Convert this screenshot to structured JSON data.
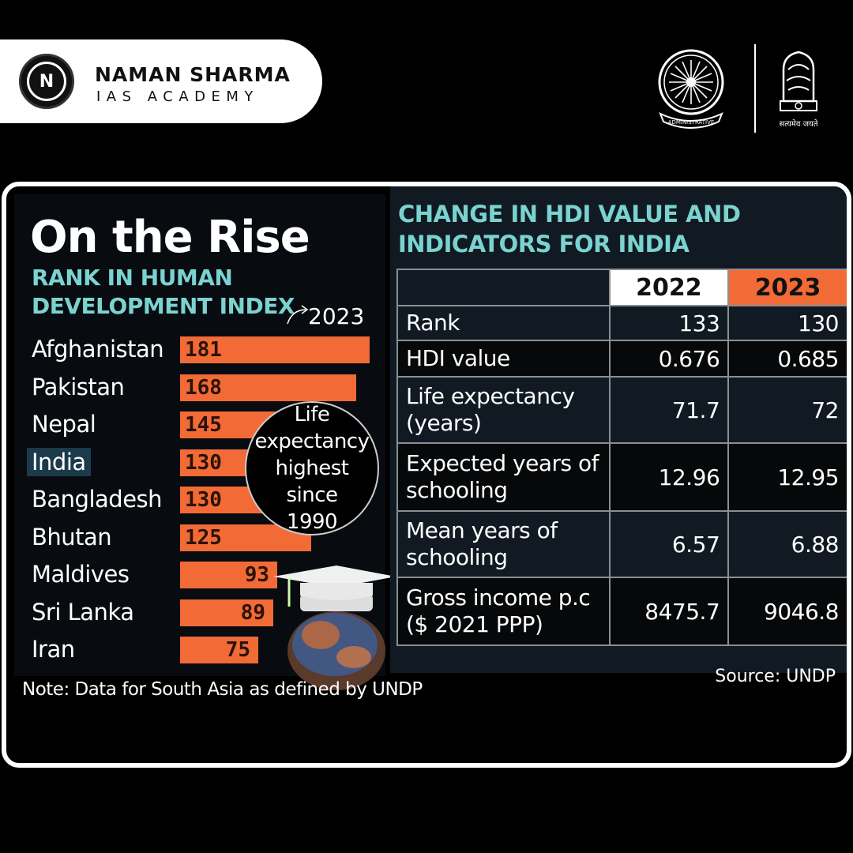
{
  "header": {
    "brand_logo_letter": "N",
    "brand_name": "NAMAN SHARMA",
    "brand_subtitle": "IAS ACADEMY",
    "emblem_motto": "सत्यमेव जयते",
    "wheel_emblem_label": "ADMINISTRATIVE"
  },
  "left_chart": {
    "title": "On the Rise",
    "subtitle": "RANK IN HUMAN DEVELOPMENT INDEX",
    "year_label": "2023",
    "callout_lines": [
      "Life",
      "expectancy",
      "highest",
      "since",
      "1990"
    ],
    "note": "Note: Data for South Asia as defined by UNDP"
  },
  "right_table": {
    "title": "CHANGE IN HDI VALUE AND INDICATORS FOR INDIA",
    "columns": [
      "2022",
      "2023"
    ],
    "rows": [
      {
        "label": "Rank",
        "v2022": "133",
        "v2023": "130"
      },
      {
        "label": "HDI value",
        "v2022": "0.676",
        "v2023": "0.685"
      },
      {
        "label": "Life expectancy (years)",
        "v2022": "71.7",
        "v2023": "72"
      },
      {
        "label": "Expected years of schooling",
        "v2022": "12.96",
        "v2023": "12.95"
      },
      {
        "label": "Mean years of schooling",
        "v2022": "6.57",
        "v2023": "6.88"
      },
      {
        "label": "Gross income p.c ($ 2021 PPP)",
        "v2022": "8475.7",
        "v2023": "9046.8"
      }
    ],
    "source": "Source: UNDP"
  },
  "colors": {
    "bar": "#f26a36",
    "accent_teal": "#7ad3d0",
    "highlight_2022": "#ffffff",
    "highlight_2023": "#f26a36"
  },
  "chart_data": {
    "type": "bar",
    "orientation": "horizontal",
    "title": "On the Rise",
    "subtitle": "RANK IN HUMAN DEVELOPMENT INDEX",
    "categories": [
      "Afghanistan",
      "Pakistan",
      "Nepal",
      "India",
      "Bangladesh",
      "Bhutan",
      "Maldives",
      "Sri Lanka",
      "Iran"
    ],
    "values": [
      181,
      168,
      145,
      130,
      130,
      125,
      93,
      89,
      75
    ],
    "highlight": "India",
    "grid": false
  }
}
